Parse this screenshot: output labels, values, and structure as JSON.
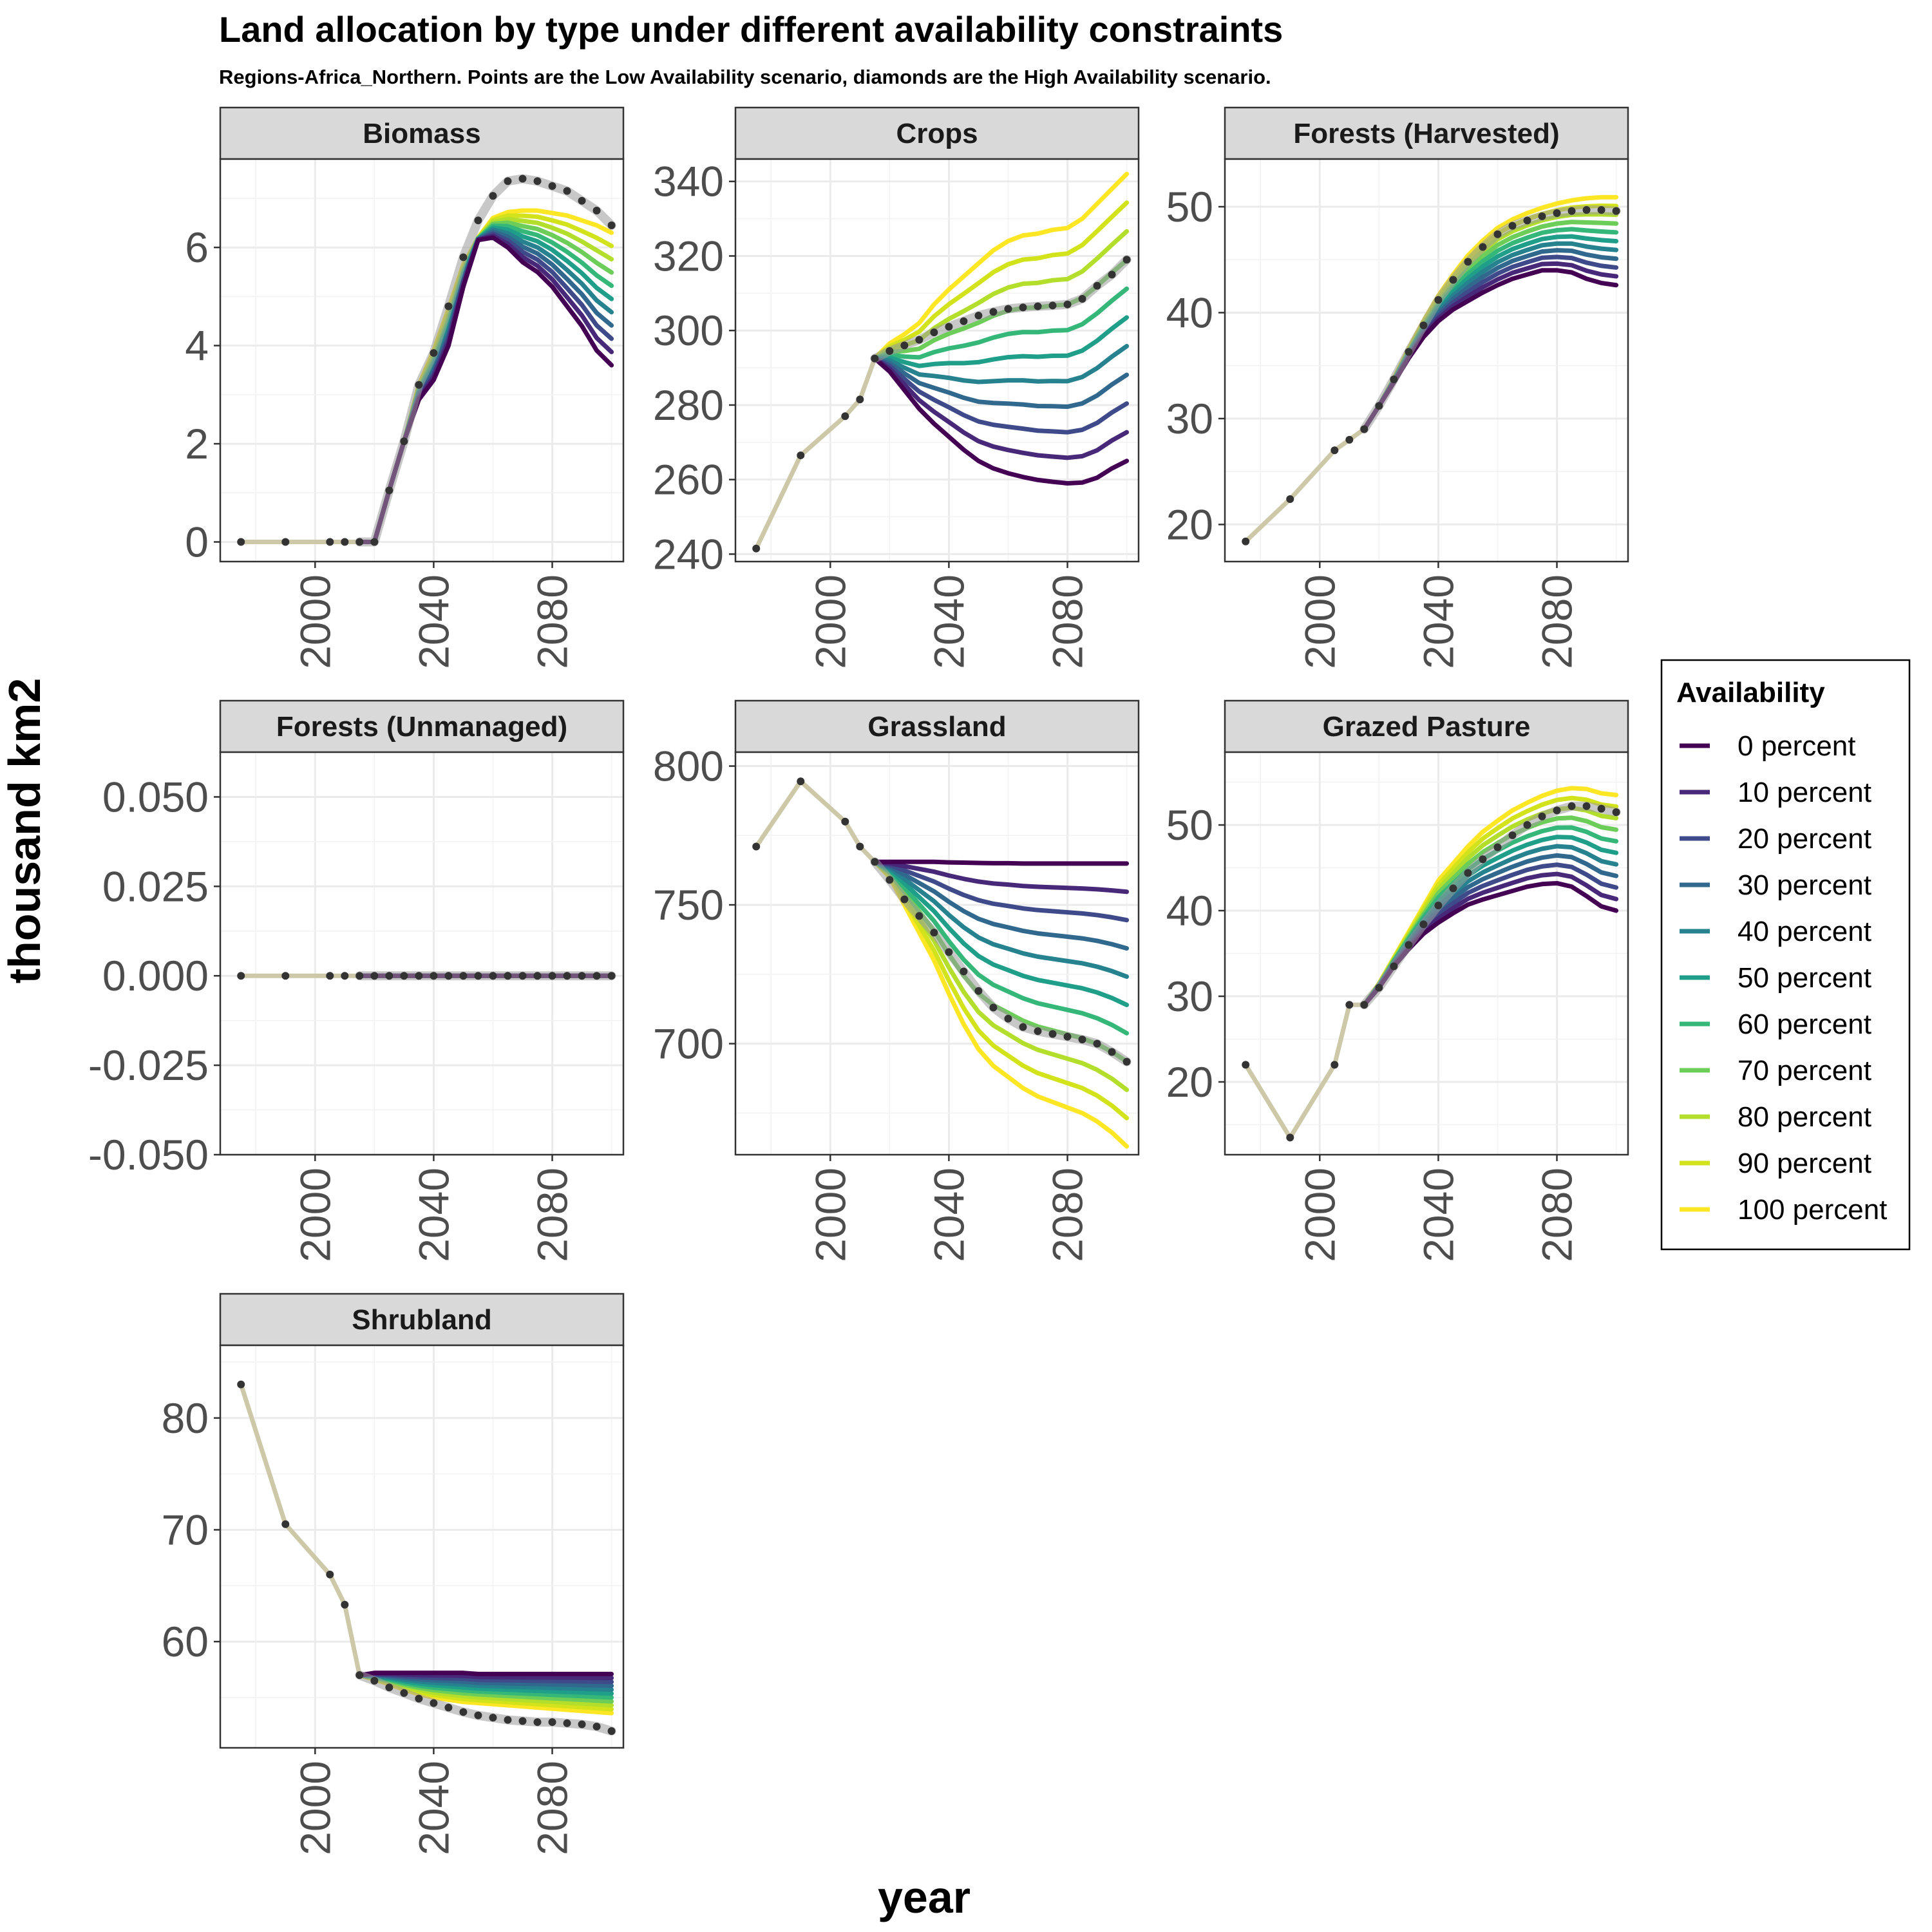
{
  "title": "Land allocation by type under different availability constraints",
  "subtitle": "Regions-Africa_Northern. Points are the Low Availability scenario, diamonds are the High Availability scenario.",
  "xlabel": "year",
  "ylabel": "thousand km2",
  "chart_data": {
    "type": "line",
    "title": "Land allocation by type under different availability constraints",
    "xlabel": "year",
    "ylabel": "thousand km2",
    "grid": true,
    "legend_position": "right",
    "legend": {
      "title": "Availability",
      "entries": [
        "0 percent",
        "10 percent",
        "20 percent",
        "30 percent",
        "40 percent",
        "50 percent",
        "60 percent",
        "70 percent",
        "80 percent",
        "90 percent",
        "100 percent"
      ],
      "colors": [
        "#440154",
        "#482878",
        "#3E4A89",
        "#31688E",
        "#26828E",
        "#1F9E89",
        "#35B779",
        "#6DCD59",
        "#B4DE2C",
        "#D2E21B",
        "#FDE725"
      ]
    },
    "hist_color": "#CDC8A8",
    "hist_years": [
      1975,
      1990,
      2005,
      2010,
      2015
    ],
    "scen_years": [
      2015,
      2020,
      2025,
      2030,
      2035,
      2040,
      2045,
      2050,
      2055,
      2060,
      2065,
      2070,
      2075,
      2080,
      2085,
      2090,
      2095,
      2100
    ],
    "xlim": [
      1968,
      2104
    ],
    "x_ticks": [
      2000,
      2040,
      2080
    ],
    "panels": [
      {
        "name": "Biomass",
        "ylim": [
          -0.4,
          7.8
        ],
        "y_ticks": [
          0,
          2,
          4,
          6
        ],
        "y_tick_labels": [
          "0",
          "2",
          "4",
          "6"
        ],
        "hist": [
          0,
          0,
          0,
          0,
          0
        ],
        "series": [
          {
            "name": "0 percent",
            "values": [
              0,
              0,
              1.05,
              2.05,
              2.9,
              3.3,
              4.0,
              5.2,
              6.15,
              6.2,
              6.0,
              5.7,
              5.5,
              5.2,
              4.8,
              4.4,
              3.9,
              3.6
            ]
          },
          {
            "name": "100 percent",
            "values": [
              0,
              0,
              1.05,
              2.05,
              3.2,
              3.9,
              4.75,
              5.65,
              6.2,
              6.6,
              6.72,
              6.75,
              6.75,
              6.7,
              6.65,
              6.55,
              6.45,
              6.3
            ]
          }
        ],
        "low": [
          0,
          0,
          1.05,
          2.05,
          3.2,
          3.85,
          4.8,
          5.8,
          6.55,
          7.05,
          7.35,
          7.4,
          7.35,
          7.25,
          7.15,
          6.95,
          6.75,
          6.45
        ],
        "pts": [
          [
            1975,
            0
          ],
          [
            1990,
            0
          ],
          [
            2005,
            0
          ],
          [
            2010,
            0
          ],
          [
            2015,
            0
          ],
          [
            2020,
            0
          ]
        ]
      },
      {
        "name": "Crops",
        "ylim": [
          238,
          346
        ],
        "y_ticks": [
          240,
          260,
          280,
          300,
          320,
          340
        ],
        "y_tick_labels": [
          "240",
          "260",
          "280",
          "300",
          "320",
          "340"
        ],
        "hist": [
          241.5,
          266.5,
          277,
          281.5,
          292.5
        ],
        "series": [
          {
            "name": "0 percent",
            "values": [
              292.5,
              289,
              284,
              279,
              275,
              271.5,
              268,
              265,
              263,
              261.7,
              260.7,
              259.9,
              259.4,
              259,
              259.2,
              260.5,
              263,
              265
            ]
          },
          {
            "name": "100 percent",
            "values": [
              292.5,
              296.5,
              299,
              302,
              307,
              311,
              314.5,
              318,
              321.5,
              324,
              325.5,
              326,
              327,
              327.5,
              330,
              334,
              338,
              342
            ]
          }
        ],
        "low": [
          292.5,
          294.5,
          296,
          297.5,
          299.5,
          301,
          302.5,
          304,
          305,
          305.8,
          306.2,
          306.5,
          306.7,
          307,
          308.5,
          312,
          315,
          319
        ]
      },
      {
        "name": "Forests (Harvested)",
        "ylim": [
          16.5,
          54.5
        ],
        "y_ticks": [
          20,
          30,
          40,
          50
        ],
        "y_tick_labels": [
          "20",
          "30",
          "40",
          "50"
        ],
        "hist": [
          18.4,
          22.4,
          27,
          28,
          29
        ],
        "series": [
          {
            "name": "0 percent",
            "values": [
              29,
              31.2,
              33.4,
              35.7,
              37.7,
              39.2,
              40.3,
              41.1,
              41.9,
              42.6,
              43.2,
              43.6,
              44,
              44,
              43.8,
              43.2,
              42.8,
              42.6
            ]
          },
          {
            "name": "100 percent",
            "values": [
              29,
              31.2,
              33.8,
              36.6,
              39.2,
              41.6,
              43.6,
              45.4,
              46.8,
              48,
              48.8,
              49.4,
              49.9,
              50.3,
              50.6,
              50.8,
              50.9,
              50.9
            ]
          }
        ],
        "low": [
          29,
          31.2,
          33.7,
          36.3,
          38.8,
          41.2,
          43.1,
          44.8,
          46.2,
          47.4,
          48.2,
          48.7,
          49.1,
          49.4,
          49.6,
          49.7,
          49.7,
          49.6
        ]
      },
      {
        "name": "Forests (Unmanaged)",
        "ylim": [
          -0.05,
          0.0625
        ],
        "y_ticks": [
          -0.05,
          -0.025,
          0,
          0.025,
          0.05
        ],
        "y_tick_labels": [
          "-0.050",
          "-0.025",
          "0.000",
          "0.025",
          "0.050"
        ],
        "hist": [
          0,
          0,
          0,
          0,
          0
        ],
        "series": [
          {
            "name": "0 percent",
            "values": [
              0,
              0,
              0,
              0,
              0,
              0,
              0,
              0,
              0,
              0,
              0,
              0,
              0,
              0,
              0,
              0,
              0,
              0
            ]
          },
          {
            "name": "100 percent",
            "values": [
              0,
              0,
              0,
              0,
              0,
              0,
              0,
              0,
              0,
              0,
              0,
              0,
              0,
              0,
              0,
              0,
              0,
              0
            ]
          }
        ],
        "low": [
          0,
          0,
          0,
          0,
          0,
          0,
          0,
          0,
          0,
          0,
          0,
          0,
          0,
          0,
          0,
          0,
          0,
          0
        ]
      },
      {
        "name": "Grassland",
        "ylim": [
          660,
          805
        ],
        "y_ticks": [
          700,
          750,
          800
        ],
        "y_tick_labels": [
          "700",
          "750",
          "800"
        ],
        "hist": [
          771,
          794.5,
          780,
          771,
          765.5
        ],
        "series": [
          {
            "name": "0 percent",
            "values": [
              765.5,
              765.5,
              765.5,
              765.5,
              765.5,
              765.3,
              765.2,
              765.1,
              765,
              765,
              764.9,
              764.9,
              764.9,
              764.9,
              764.9,
              764.9,
              764.9,
              764.9
            ]
          },
          {
            "name": "100 percent",
            "values": [
              765.5,
              760,
              750,
              740,
              730,
              718,
              707,
              698,
              692,
              688,
              684,
              681,
              679,
              677,
              675,
              672,
              668,
              663
            ]
          }
        ],
        "low": [
          765.5,
          759,
          752,
          746,
          740,
          733,
          726,
          719,
          713,
          709,
          706,
          704.5,
          703.5,
          702.5,
          701.5,
          700,
          697,
          693.5
        ]
      },
      {
        "name": "Grazed Pasture",
        "ylim": [
          11.5,
          58.5
        ],
        "y_ticks": [
          20,
          30,
          40,
          50
        ],
        "y_tick_labels": [
          "20",
          "30",
          "40",
          "50"
        ],
        "hist": [
          22,
          13.5,
          22,
          29,
          29
        ],
        "series": [
          {
            "name": "0 percent",
            "values": [
              29,
              31,
              33.5,
              35.5,
              37.3,
              38.6,
              39.7,
              40.7,
              41.3,
              41.8,
              42.3,
              42.8,
              43.1,
              43.2,
              42.8,
              41.7,
              40.5,
              40
            ]
          },
          {
            "name": "100 percent",
            "values": [
              29,
              31.5,
              34.5,
              37.5,
              40.5,
              43.5,
              45.5,
              47.5,
              49.2,
              50.5,
              51.7,
              52.6,
              53.4,
              54,
              54.3,
              54.2,
              53.7,
              53.5
            ]
          }
        ],
        "low": [
          29,
          31,
          33.5,
          36,
          38.4,
          40.6,
          42.6,
          44.4,
          46,
          47.4,
          48.8,
          50,
          51,
          51.7,
          52.2,
          52.2,
          51.9,
          51.5
        ]
      },
      {
        "name": "Shrubland",
        "ylim": [
          50.5,
          86.5
        ],
        "y_ticks": [
          60,
          70,
          80
        ],
        "y_tick_labels": [
          "60",
          "70",
          "80"
        ],
        "hist": [
          83,
          70.5,
          66,
          63.3,
          57
        ],
        "series": [
          {
            "name": "0 percent",
            "values": [
              57,
              57.2,
              57.2,
              57.2,
              57.2,
              57.2,
              57.2,
              57.2,
              57.1,
              57.1,
              57.1,
              57.1,
              57.1,
              57.1,
              57.1,
              57.1,
              57.1,
              57.1
            ]
          },
          {
            "name": "100 percent",
            "values": [
              57,
              56.6,
              56.2,
              55.7,
              55.3,
              55,
              54.8,
              54.6,
              54.5,
              54.4,
              54.3,
              54.2,
              54.1,
              54,
              53.9,
              53.8,
              53.7,
              53.6
            ]
          }
        ],
        "low": [
          57,
          56.5,
          55.9,
          55.4,
          54.9,
          54.5,
          54.1,
          53.7,
          53.4,
          53.2,
          53,
          52.9,
          52.8,
          52.8,
          52.7,
          52.6,
          52.4,
          52
        ]
      }
    ]
  }
}
